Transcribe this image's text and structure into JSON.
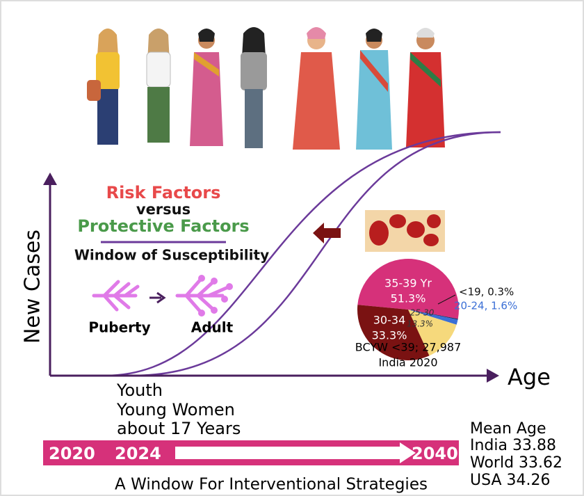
{
  "risk_title": "Risk Factors",
  "versus": "versus",
  "protective_title": "Protective Factors",
  "window_title": "Window of Susceptibility",
  "puberty": "Puberty",
  "adult": "Adult",
  "y_axis_label": "New Cases",
  "x_axis_label": "Age",
  "youth": [
    "Youth",
    "Young Women",
    "about 17 Years"
  ],
  "timeline": {
    "start": "2020",
    "mid": "2024",
    "end": "2040",
    "caption": "A Window For Interventional Strategies"
  },
  "mean_age": {
    "title": "Mean Age",
    "rows": [
      "India 33.88",
      "World 33.62",
      "USA 34.26"
    ]
  },
  "pie": {
    "slices": [
      {
        "label": "35-39 Yr",
        "value": 51.3,
        "value_label": "51.3%",
        "color": "#d6317a"
      },
      {
        "label": "<19, 0.3%",
        "value": 0.3,
        "color": "#1f2a66"
      },
      {
        "label": "20-24, 1.6%",
        "value": 1.6,
        "color": "#3b6fd6"
      },
      {
        "label": "25-30",
        "value": 13.3,
        "value_label": "13.3%",
        "color": "#f6d97c"
      },
      {
        "label": "30-34",
        "value": 33.3,
        "value_label": "33.3%",
        "color": "#7a1212"
      }
    ],
    "caption": [
      "BCYW <39; 27,987",
      "India 2020"
    ]
  }
}
